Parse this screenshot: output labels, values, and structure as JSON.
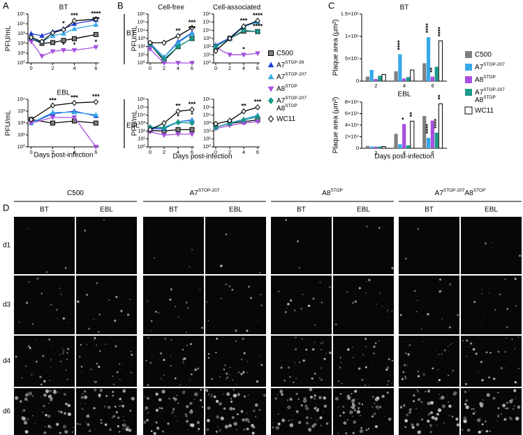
{
  "panel_labels": [
    "A",
    "B",
    "C",
    "D"
  ],
  "panel_b": {
    "rows": [
      "BT",
      "EBL"
    ],
    "x_label": "Days post-infection"
  },
  "chart_data": [
    {
      "type": "line",
      "title": "BT",
      "y_label": "PFU/mL",
      "log_y": true,
      "x": [
        0,
        1,
        2,
        3,
        4,
        6
      ],
      "xlim": [
        -0.3,
        6.3
      ],
      "xticks": [
        0,
        2,
        4,
        6
      ],
      "ylim": [
        1,
        100000
      ],
      "yticks": [
        {
          "value": 1,
          "label": "10⁰"
        },
        {
          "value": 10,
          "label": "10¹"
        },
        {
          "value": 100,
          "label": "10²"
        },
        {
          "value": 1000,
          "label": "10³"
        },
        {
          "value": 10000,
          "label": "10⁴"
        },
        {
          "value": 100000,
          "label": "10⁵"
        }
      ],
      "series": [
        {
          "name": "C500",
          "color": "#7f7f7f",
          "edge": "#000000",
          "marker": "square",
          "values": [
            300,
            100,
            120,
            200,
            300,
            800
          ]
        },
        {
          "name": "A7STOP-39",
          "color": "#1f3fd6",
          "marker": "triangle",
          "values": [
            1000,
            600,
            1500,
            3000,
            10000,
            25000
          ]
        },
        {
          "name": "A7STOP-207",
          "color": "#35a8e8",
          "marker": "triangle",
          "values": [
            300,
            150,
            600,
            1000,
            3000,
            8000
          ]
        },
        {
          "name": "A8STOP",
          "color": "#a64fe0",
          "marker": "down",
          "values": [
            150,
            5,
            15,
            20,
            20,
            40
          ]
        },
        {
          "name": "WC11",
          "color": "#ffffff",
          "edge": "#000000",
          "marker": "diamond",
          "values": [
            400,
            150,
            1200,
            2500,
            20000,
            30000
          ]
        }
      ],
      "annotations": [
        {
          "x": 3,
          "y": 3000,
          "text": "*"
        },
        {
          "x": 4,
          "y": 20000,
          "text": "***"
        },
        {
          "x": 6,
          "y": 30000,
          "text": "****"
        },
        {
          "x": 6,
          "y": 8000,
          "text": "***"
        },
        {
          "x": 3,
          "y": 20,
          "text": "*"
        },
        {
          "x": 4,
          "y": 20,
          "text": "*"
        },
        {
          "x": 6,
          "y": 40,
          "text": "*"
        }
      ]
    },
    {
      "type": "line",
      "title": "EBL",
      "y_label": "PFU/mL",
      "x_label": "Days post-infection",
      "log_y": true,
      "x": [
        0,
        2,
        4,
        6
      ],
      "xlim": [
        -0.3,
        6.3
      ],
      "xticks": [
        0,
        2,
        4,
        6
      ],
      "ylim": [
        1,
        10000
      ],
      "yticks": [
        {
          "value": 1,
          "label": "10⁰"
        },
        {
          "value": 10,
          "label": "10¹"
        },
        {
          "value": 100,
          "label": "10²"
        },
        {
          "value": 1000,
          "label": "10³"
        },
        {
          "value": 10000,
          "label": "10⁴"
        }
      ],
      "series": [
        {
          "name": "C500",
          "color": "#7f7f7f",
          "edge": "#000000",
          "marker": "square",
          "values": [
            200,
            100,
            150,
            100
          ]
        },
        {
          "name": "A7STOP-39",
          "color": "#1f3fd6",
          "marker": "triangle",
          "values": [
            100,
            600,
            1000,
            400
          ]
        },
        {
          "name": "A7STOP-207",
          "color": "#35a8e8",
          "marker": "triangle",
          "values": [
            100,
            800,
            800,
            500
          ]
        },
        {
          "name": "A8STOP",
          "color": "#a64fe0",
          "marker": "down",
          "values": [
            100,
            300,
            300,
            1
          ]
        },
        {
          "name": "WC11",
          "color": "#ffffff",
          "edge": "#000000",
          "marker": "diamond",
          "values": [
            200,
            3000,
            5000,
            6000
          ]
        }
      ],
      "annotations": [
        {
          "x": 2,
          "y": 3000,
          "text": "***"
        },
        {
          "x": 4,
          "y": 5000,
          "text": "***"
        },
        {
          "x": 6,
          "y": 6000,
          "text": "***"
        }
      ]
    },
    {
      "type": "line",
      "title": "Cell-free",
      "y_label": "PFU/mL",
      "log_y": true,
      "x": [
        0,
        2,
        4,
        6
      ],
      "xlim": [
        -0.3,
        6.3
      ],
      "xticks": [
        0,
        2,
        4,
        6
      ],
      "ylim": [
        1,
        1000000
      ],
      "yticks": [
        {
          "value": 1,
          "label": "10⁰"
        },
        {
          "value": 10,
          "label": "10¹"
        },
        {
          "value": 100,
          "label": "10²"
        },
        {
          "value": 1000,
          "label": "10³"
        },
        {
          "value": 10000,
          "label": "10⁴"
        },
        {
          "value": 100000,
          "label": "10⁵"
        },
        {
          "value": 1000000,
          "label": "10⁶"
        }
      ],
      "series": [
        {
          "name": "C500",
          "color": "#7f7f7f",
          "edge": "#000000",
          "marker": "square",
          "values": [
            200,
            2,
            100,
            1000
          ]
        },
        {
          "name": "A7STOP-39",
          "color": "#1f3fd6",
          "marker": "triangle",
          "values": [
            250,
            5,
            400,
            5000
          ]
        },
        {
          "name": "A7STOP-207",
          "color": "#35a8e8",
          "marker": "triangle",
          "values": [
            200,
            5,
            300,
            4000
          ]
        },
        {
          "name": "A8STOP",
          "color": "#a64fe0",
          "marker": "down",
          "values": [
            50,
            1,
            1,
            1
          ]
        },
        {
          "name": "A7STOP-207A8STOP",
          "color": "#1a9a8a",
          "marker": "diamond",
          "values": [
            200,
            3,
            100,
            1000
          ]
        },
        {
          "name": "WC11",
          "color": "#ffffff",
          "edge": "#000000",
          "marker": "diamond",
          "values": [
            300,
            300,
            2000,
            20000
          ]
        }
      ],
      "annotations": [
        {
          "x": 4,
          "y": 2000,
          "text": "**"
        },
        {
          "x": 6,
          "y": 20000,
          "text": "***"
        },
        {
          "x": 6,
          "y": 4000,
          "text": "***"
        }
      ]
    },
    {
      "type": "line",
      "title": "Cell-associated",
      "log_y": true,
      "x": [
        0,
        2,
        4,
        6
      ],
      "xlim": [
        -0.3,
        6.3
      ],
      "xticks": [
        0,
        2,
        4,
        6
      ],
      "ylim": [
        1,
        1000000
      ],
      "yticks": [
        {
          "value": 1,
          "label": "10⁰"
        },
        {
          "value": 10,
          "label": "10¹"
        },
        {
          "value": 100,
          "label": "10²"
        },
        {
          "value": 1000,
          "label": "10³"
        },
        {
          "value": 10000,
          "label": "10⁴"
        },
        {
          "value": 100000,
          "label": "10⁵"
        },
        {
          "value": 1000000,
          "label": "10⁶"
        }
      ],
      "series": [
        {
          "name": "C500",
          "color": "#7f7f7f",
          "edge": "#000000",
          "marker": "square",
          "values": [
            100,
            1000,
            8000,
            7000
          ]
        },
        {
          "name": "A7STOP-39",
          "color": "#1f3fd6",
          "marker": "triangle",
          "values": [
            150,
            1200,
            35000,
            120000
          ]
        },
        {
          "name": "A7STOP-207",
          "color": "#35a8e8",
          "marker": "triangle",
          "values": [
            100,
            1000,
            30000,
            100000
          ]
        },
        {
          "name": "A8STOP",
          "color": "#a64fe0",
          "marker": "down",
          "values": [
            80,
            10,
            10,
            15
          ]
        },
        {
          "name": "A7STOP-207A8STOP",
          "color": "#1a9a8a",
          "marker": "diamond",
          "values": [
            100,
            1000,
            10000,
            7000
          ]
        },
        {
          "name": "WC11",
          "color": "#ffffff",
          "edge": "#000000",
          "marker": "diamond",
          "values": [
            30,
            1000,
            30000,
            150000
          ]
        }
      ],
      "annotations": [
        {
          "x": 4,
          "y": 35000,
          "text": "***"
        },
        {
          "x": 6,
          "y": 150000,
          "text": "****"
        },
        {
          "x": 6,
          "y": 7000,
          "text": "****"
        },
        {
          "x": 4,
          "y": 10,
          "text": "*"
        }
      ]
    },
    {
      "type": "line",
      "log_y": true,
      "x": [
        0,
        2,
        4,
        6
      ],
      "xlim": [
        -0.3,
        6.3
      ],
      "xticks": [
        0,
        2,
        4,
        6
      ],
      "ylim": [
        1,
        1000000
      ],
      "y_label": "PFU/mL",
      "yticks": [
        {
          "value": 1,
          "label": "10⁰"
        },
        {
          "value": 10,
          "label": "10¹"
        },
        {
          "value": 100,
          "label": "10²"
        },
        {
          "value": 1000,
          "label": "10³"
        },
        {
          "value": 10000,
          "label": "10⁴"
        },
        {
          "value": 100000,
          "label": "10⁵"
        },
        {
          "value": 1000000,
          "label": "10⁶"
        }
      ],
      "series": [
        {
          "name": "C500",
          "color": "#7f7f7f",
          "edge": "#000000",
          "marker": "square",
          "values": [
            120,
            100,
            150,
            150
          ]
        },
        {
          "name": "A7STOP-39",
          "color": "#1f3fd6",
          "marker": "triangle",
          "values": [
            200,
            200,
            1500,
            2500
          ]
        },
        {
          "name": "A7STOP-207",
          "color": "#35a8e8",
          "marker": "triangle",
          "values": [
            300,
            300,
            1500,
            2000
          ]
        },
        {
          "name": "A8STOP",
          "color": "#a64fe0",
          "marker": "down",
          "values": [
            80,
            30,
            40,
            40
          ]
        },
        {
          "name": "A7STOP-207A8STOP",
          "color": "#1a9a8a",
          "marker": "diamond",
          "values": [
            300,
            250,
            1200,
            1000
          ]
        },
        {
          "name": "WC11",
          "color": "#ffffff",
          "edge": "#000000",
          "marker": "diamond",
          "values": [
            150,
            1000,
            30000,
            50000
          ]
        }
      ],
      "annotations": [
        {
          "x": 4,
          "y": 30000,
          "text": "**"
        },
        {
          "x": 6,
          "y": 50000,
          "text": "***"
        },
        {
          "x": 4,
          "y": 1500,
          "text": "*"
        },
        {
          "x": 6,
          "y": 2500,
          "text": "*"
        }
      ]
    },
    {
      "type": "line",
      "log_y": true,
      "x": [
        0,
        2,
        4,
        6
      ],
      "xlim": [
        -0.3,
        6.3
      ],
      "xticks": [
        0,
        2,
        4,
        6
      ],
      "ylim": [
        1,
        1000000
      ],
      "yticks": [
        {
          "value": 1,
          "label": "10⁰"
        },
        {
          "value": 10,
          "label": "10¹"
        },
        {
          "value": 100,
          "label": "10²"
        },
        {
          "value": 1000,
          "label": "10³"
        },
        {
          "value": 10000,
          "label": "10⁴"
        },
        {
          "value": 100000,
          "label": "10⁵"
        },
        {
          "value": 1000000,
          "label": "10⁶"
        }
      ],
      "series": [
        {
          "name": "C500",
          "color": "#7f7f7f",
          "edge": "#000000",
          "marker": "square",
          "values": [
            300,
            900,
            1500,
            2500
          ]
        },
        {
          "name": "A7STOP-39",
          "color": "#1f3fd6",
          "marker": "triangle",
          "values": [
            300,
            1000,
            3000,
            9000
          ]
        },
        {
          "name": "A7STOP-207",
          "color": "#35a8e8",
          "marker": "triangle",
          "values": [
            300,
            1000,
            3000,
            10000
          ]
        },
        {
          "name": "A8STOP",
          "color": "#a64fe0",
          "marker": "down",
          "values": [
            200,
            500,
            1000,
            1500
          ]
        },
        {
          "name": "A7STOP-207A8STOP",
          "color": "#1a9a8a",
          "marker": "diamond",
          "values": [
            300,
            900,
            2500,
            6000
          ]
        },
        {
          "name": "WC11",
          "color": "#ffffff",
          "edge": "#000000",
          "marker": "diamond",
          "values": [
            800,
            2000,
            30000,
            100000
          ]
        }
      ],
      "annotations": [
        {
          "x": 4,
          "y": 30000,
          "text": "**"
        },
        {
          "x": 6,
          "y": 100000,
          "text": "***"
        }
      ]
    },
    {
      "type": "bar",
      "title": "BT",
      "y_label": "Plaque area (μm²)",
      "categories": [
        "2",
        "4",
        "6"
      ],
      "ylim": [
        0,
        1500000
      ],
      "yticks": [
        0,
        {
          "value": 500000,
          "label": "5×10⁵"
        },
        {
          "value": 1000000,
          "label": "1×10⁶"
        },
        {
          "value": 1500000,
          "label": "1.5×10⁶"
        }
      ],
      "series": [
        {
          "name": "C500",
          "color": "#7f7f7f",
          "values": [
            100000,
            220000,
            400000
          ]
        },
        {
          "name": "A7STOP-207",
          "color": "#35a8e8",
          "values": [
            250000,
            600000,
            980000
          ]
        },
        {
          "name": "A8STOP",
          "color": "#a64fe0",
          "values": [
            50000,
            60000,
            100000
          ]
        },
        {
          "name": "A7STOP-207A8STOP",
          "color": "#1a9a8a",
          "values": [
            120000,
            90000,
            320000
          ]
        },
        {
          "name": "WC11",
          "color": "#ffffff",
          "edge": "#000000",
          "values": [
            150000,
            250000,
            900000
          ]
        }
      ],
      "annotations": [
        {
          "category": 1,
          "series": 1,
          "text": "****"
        },
        {
          "category": 2,
          "series": 1,
          "text": "****"
        },
        {
          "category": 2,
          "series": 2,
          "text": "**"
        },
        {
          "category": 2,
          "series": 4,
          "text": "****"
        }
      ]
    },
    {
      "type": "bar",
      "title": "EBL",
      "y_label": "Plaque area (μm²)",
      "x_label": "Days post-infection",
      "categories": [
        "2",
        "4",
        "6"
      ],
      "ylim": [
        0,
        80000
      ],
      "yticks": [
        0,
        {
          "value": 20000,
          "label": "2×10⁴"
        },
        {
          "value": 40000,
          "label": "4×10⁴"
        },
        {
          "value": 60000,
          "label": "6×10⁴"
        },
        {
          "value": 80000,
          "label": "8×10⁴"
        }
      ],
      "series": [
        {
          "name": "C500",
          "color": "#7f7f7f",
          "values": [
            4000,
            25000,
            56000
          ]
        },
        {
          "name": "A7STOP-207",
          "color": "#35a8e8",
          "values": [
            3000,
            7000,
            18000
          ]
        },
        {
          "name": "A8STOP",
          "color": "#a64fe0",
          "values": [
            3000,
            42000,
            48000
          ]
        },
        {
          "name": "A7STOP-207A8STOP",
          "color": "#1a9a8a",
          "values": [
            3000,
            5000,
            27000
          ]
        },
        {
          "name": "WC11",
          "color": "#ffffff",
          "edge": "#000000",
          "values": [
            3000,
            47000,
            77000
          ]
        }
      ],
      "annotations": [
        {
          "category": 1,
          "series": 2,
          "text": "*"
        },
        {
          "category": 1,
          "series": 4,
          "text": "**"
        },
        {
          "category": 2,
          "series": 1,
          "text": "****"
        },
        {
          "category": 2,
          "series": 3,
          "text": "****"
        },
        {
          "category": 2,
          "series": 4,
          "text": "**"
        }
      ]
    }
  ],
  "micrographs": {
    "groups": [
      "C500",
      "A7STOP-207",
      "A8STOP",
      "A7STOP-207A8STOP"
    ],
    "columns": [
      "BT",
      "EBL"
    ],
    "rows": [
      "d1",
      "d3",
      "d4",
      "d6"
    ]
  }
}
